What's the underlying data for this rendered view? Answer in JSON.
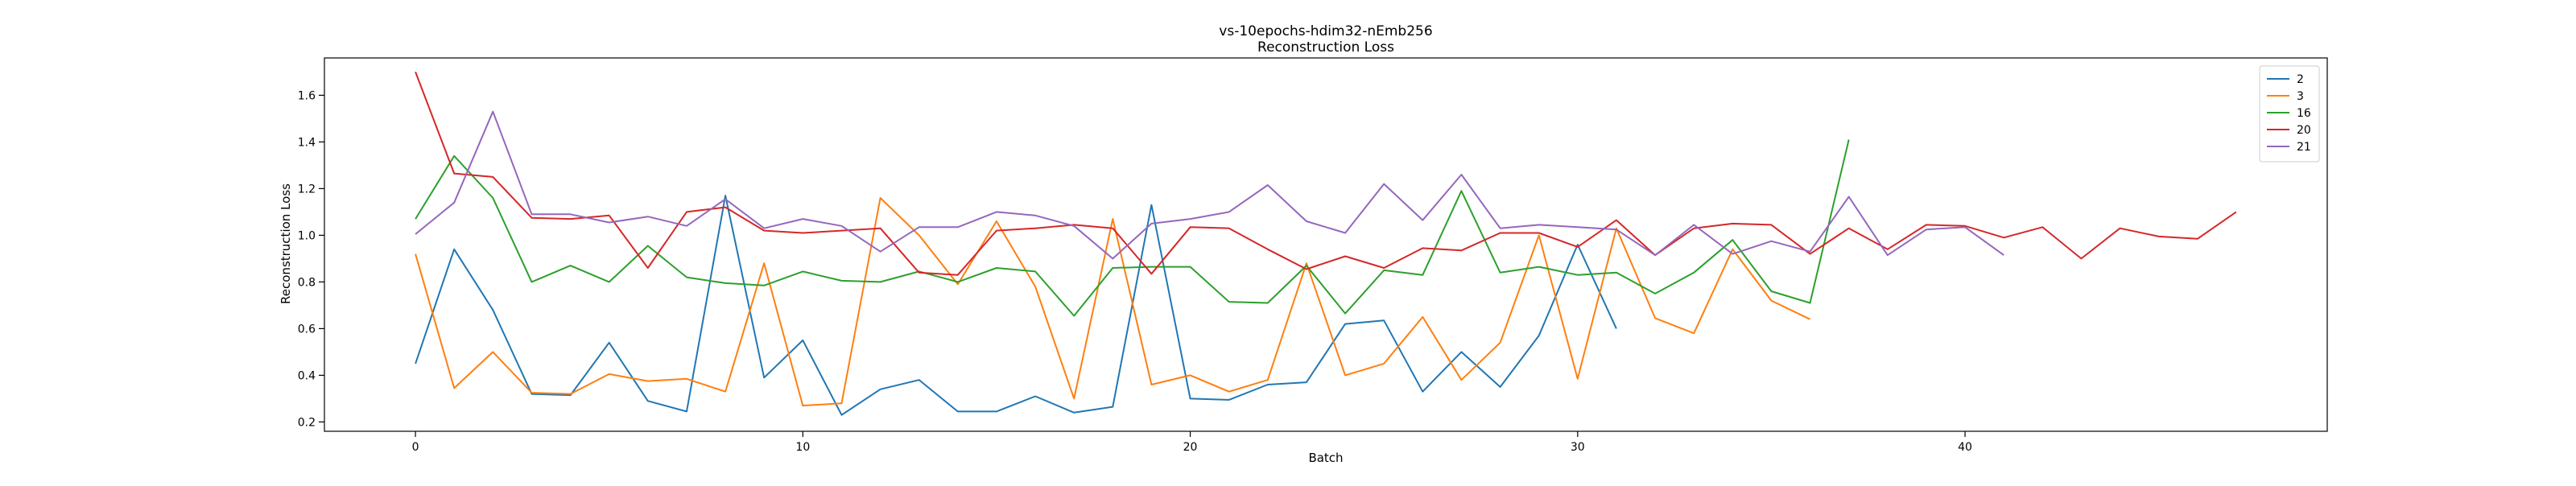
{
  "chart_data": {
    "type": "line",
    "title": "vs-10epochs-hdim32-nEmb256",
    "subtitle": "Reconstruction Loss",
    "xlabel": "Batch",
    "ylabel": "Reconstruction Loss",
    "xlim": [
      -2.35,
      49.35
    ],
    "ylim": [
      0.16,
      1.76
    ],
    "xticks": [
      0,
      10,
      20,
      30,
      40
    ],
    "yticks": [
      0.2,
      0.4,
      0.6,
      0.8,
      1.0,
      1.2,
      1.4,
      1.6
    ],
    "grid": false,
    "legend_position": "top-right",
    "series": [
      {
        "name": "2",
        "color": "#1f77b4",
        "values": [
          0.45,
          0.94,
          0.68,
          0.32,
          0.315,
          0.54,
          0.29,
          0.245,
          1.17,
          0.39,
          0.55,
          0.23,
          0.34,
          0.38,
          0.245,
          0.245,
          0.31,
          0.24,
          0.265,
          1.13,
          0.3,
          0.295,
          0.36,
          0.37,
          0.62,
          0.635,
          0.33,
          0.5,
          0.35,
          0.57,
          0.96,
          0.6
        ]
      },
      {
        "name": "3",
        "color": "#ff7f0e",
        "values": [
          0.92,
          0.345,
          0.5,
          0.325,
          0.32,
          0.405,
          0.375,
          0.385,
          0.33,
          0.88,
          0.27,
          0.28,
          1.16,
          1.0,
          0.79,
          1.06,
          0.78,
          0.3,
          1.07,
          0.36,
          0.4,
          0.33,
          0.38,
          0.88,
          0.4,
          0.45,
          0.65,
          0.38,
          0.54,
          1.0,
          0.385,
          1.03,
          0.645,
          0.58,
          0.94,
          0.72,
          0.64
        ]
      },
      {
        "name": "16",
        "color": "#2ca02c",
        "values": [
          1.07,
          1.34,
          1.16,
          0.8,
          0.87,
          0.8,
          0.955,
          0.82,
          0.795,
          0.785,
          0.845,
          0.805,
          0.8,
          0.845,
          0.8,
          0.86,
          0.845,
          0.655,
          0.86,
          0.865,
          0.865,
          0.715,
          0.71,
          0.87,
          0.665,
          0.85,
          0.83,
          1.19,
          0.84,
          0.865,
          0.83,
          0.84,
          0.75,
          0.84,
          0.98,
          0.76,
          0.71,
          1.41
        ]
      },
      {
        "name": "20",
        "color": "#d62728",
        "values": [
          1.7,
          1.265,
          1.25,
          1.075,
          1.07,
          1.085,
          0.86,
          1.1,
          1.12,
          1.02,
          1.01,
          1.02,
          1.03,
          0.84,
          0.83,
          1.02,
          1.03,
          1.045,
          1.03,
          0.835,
          1.035,
          1.03,
          0.94,
          0.855,
          0.91,
          0.86,
          0.945,
          0.935,
          1.01,
          1.01,
          0.95,
          1.065,
          0.915,
          1.03,
          1.05,
          1.045,
          0.92,
          1.03,
          0.94,
          1.045,
          1.04,
          0.99,
          1.035,
          0.9,
          1.03,
          0.995,
          0.985,
          1.1
        ]
      },
      {
        "name": "21",
        "color": "#9467bd",
        "values": [
          1.005,
          1.14,
          1.53,
          1.09,
          1.09,
          1.055,
          1.08,
          1.04,
          1.155,
          1.03,
          1.07,
          1.04,
          0.93,
          1.035,
          1.035,
          1.1,
          1.085,
          1.04,
          0.9,
          1.05,
          1.07,
          1.1,
          1.215,
          1.06,
          1.01,
          1.22,
          1.065,
          1.26,
          1.03,
          1.045,
          1.035,
          1.025,
          0.915,
          1.045,
          0.92,
          0.975,
          0.93,
          1.165,
          0.915,
          1.025,
          1.035,
          0.915
        ]
      }
    ]
  }
}
